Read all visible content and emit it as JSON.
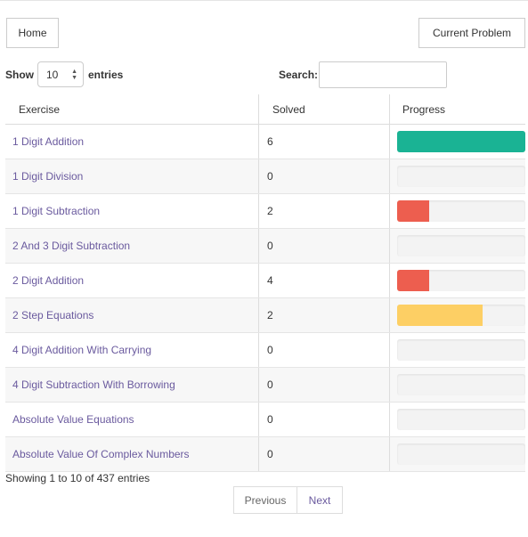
{
  "header": {
    "home_label": "Home",
    "current_problem_label": "Current Problem"
  },
  "controls": {
    "show_label": "Show",
    "entries_value": "10",
    "entries_label": "entries",
    "search_label": "Search:",
    "search_value": ""
  },
  "table": {
    "columns": [
      "Exercise",
      "Solved",
      "Progress"
    ],
    "rows": [
      {
        "exercise": "1 Digit Addition",
        "solved": "6",
        "progress": 1.0,
        "color": "#1ab394"
      },
      {
        "exercise": "1 Digit Division",
        "solved": "0",
        "progress": 0,
        "color": ""
      },
      {
        "exercise": "1 Digit Subtraction",
        "solved": "2",
        "progress": 0.25,
        "color": "#ed5e4f"
      },
      {
        "exercise": "2 And 3 Digit Subtraction",
        "solved": "0",
        "progress": 0,
        "color": ""
      },
      {
        "exercise": "2 Digit Addition",
        "solved": "4",
        "progress": 0.25,
        "color": "#ed5e4f"
      },
      {
        "exercise": "2 Step Equations",
        "solved": "2",
        "progress": 0.667,
        "color": "#fdcf64"
      },
      {
        "exercise": "4 Digit Addition With Carrying",
        "solved": "0",
        "progress": 0,
        "color": ""
      },
      {
        "exercise": "4 Digit Subtraction With Borrowing",
        "solved": "0",
        "progress": 0,
        "color": ""
      },
      {
        "exercise": "Absolute Value Equations",
        "solved": "0",
        "progress": 0,
        "color": ""
      },
      {
        "exercise": "Absolute Value Of Complex Numbers",
        "solved": "0",
        "progress": 0,
        "color": ""
      }
    ]
  },
  "footer": {
    "info": "Showing 1 to 10 of 437 entries",
    "prev_label": "Previous",
    "next_label": "Next"
  }
}
